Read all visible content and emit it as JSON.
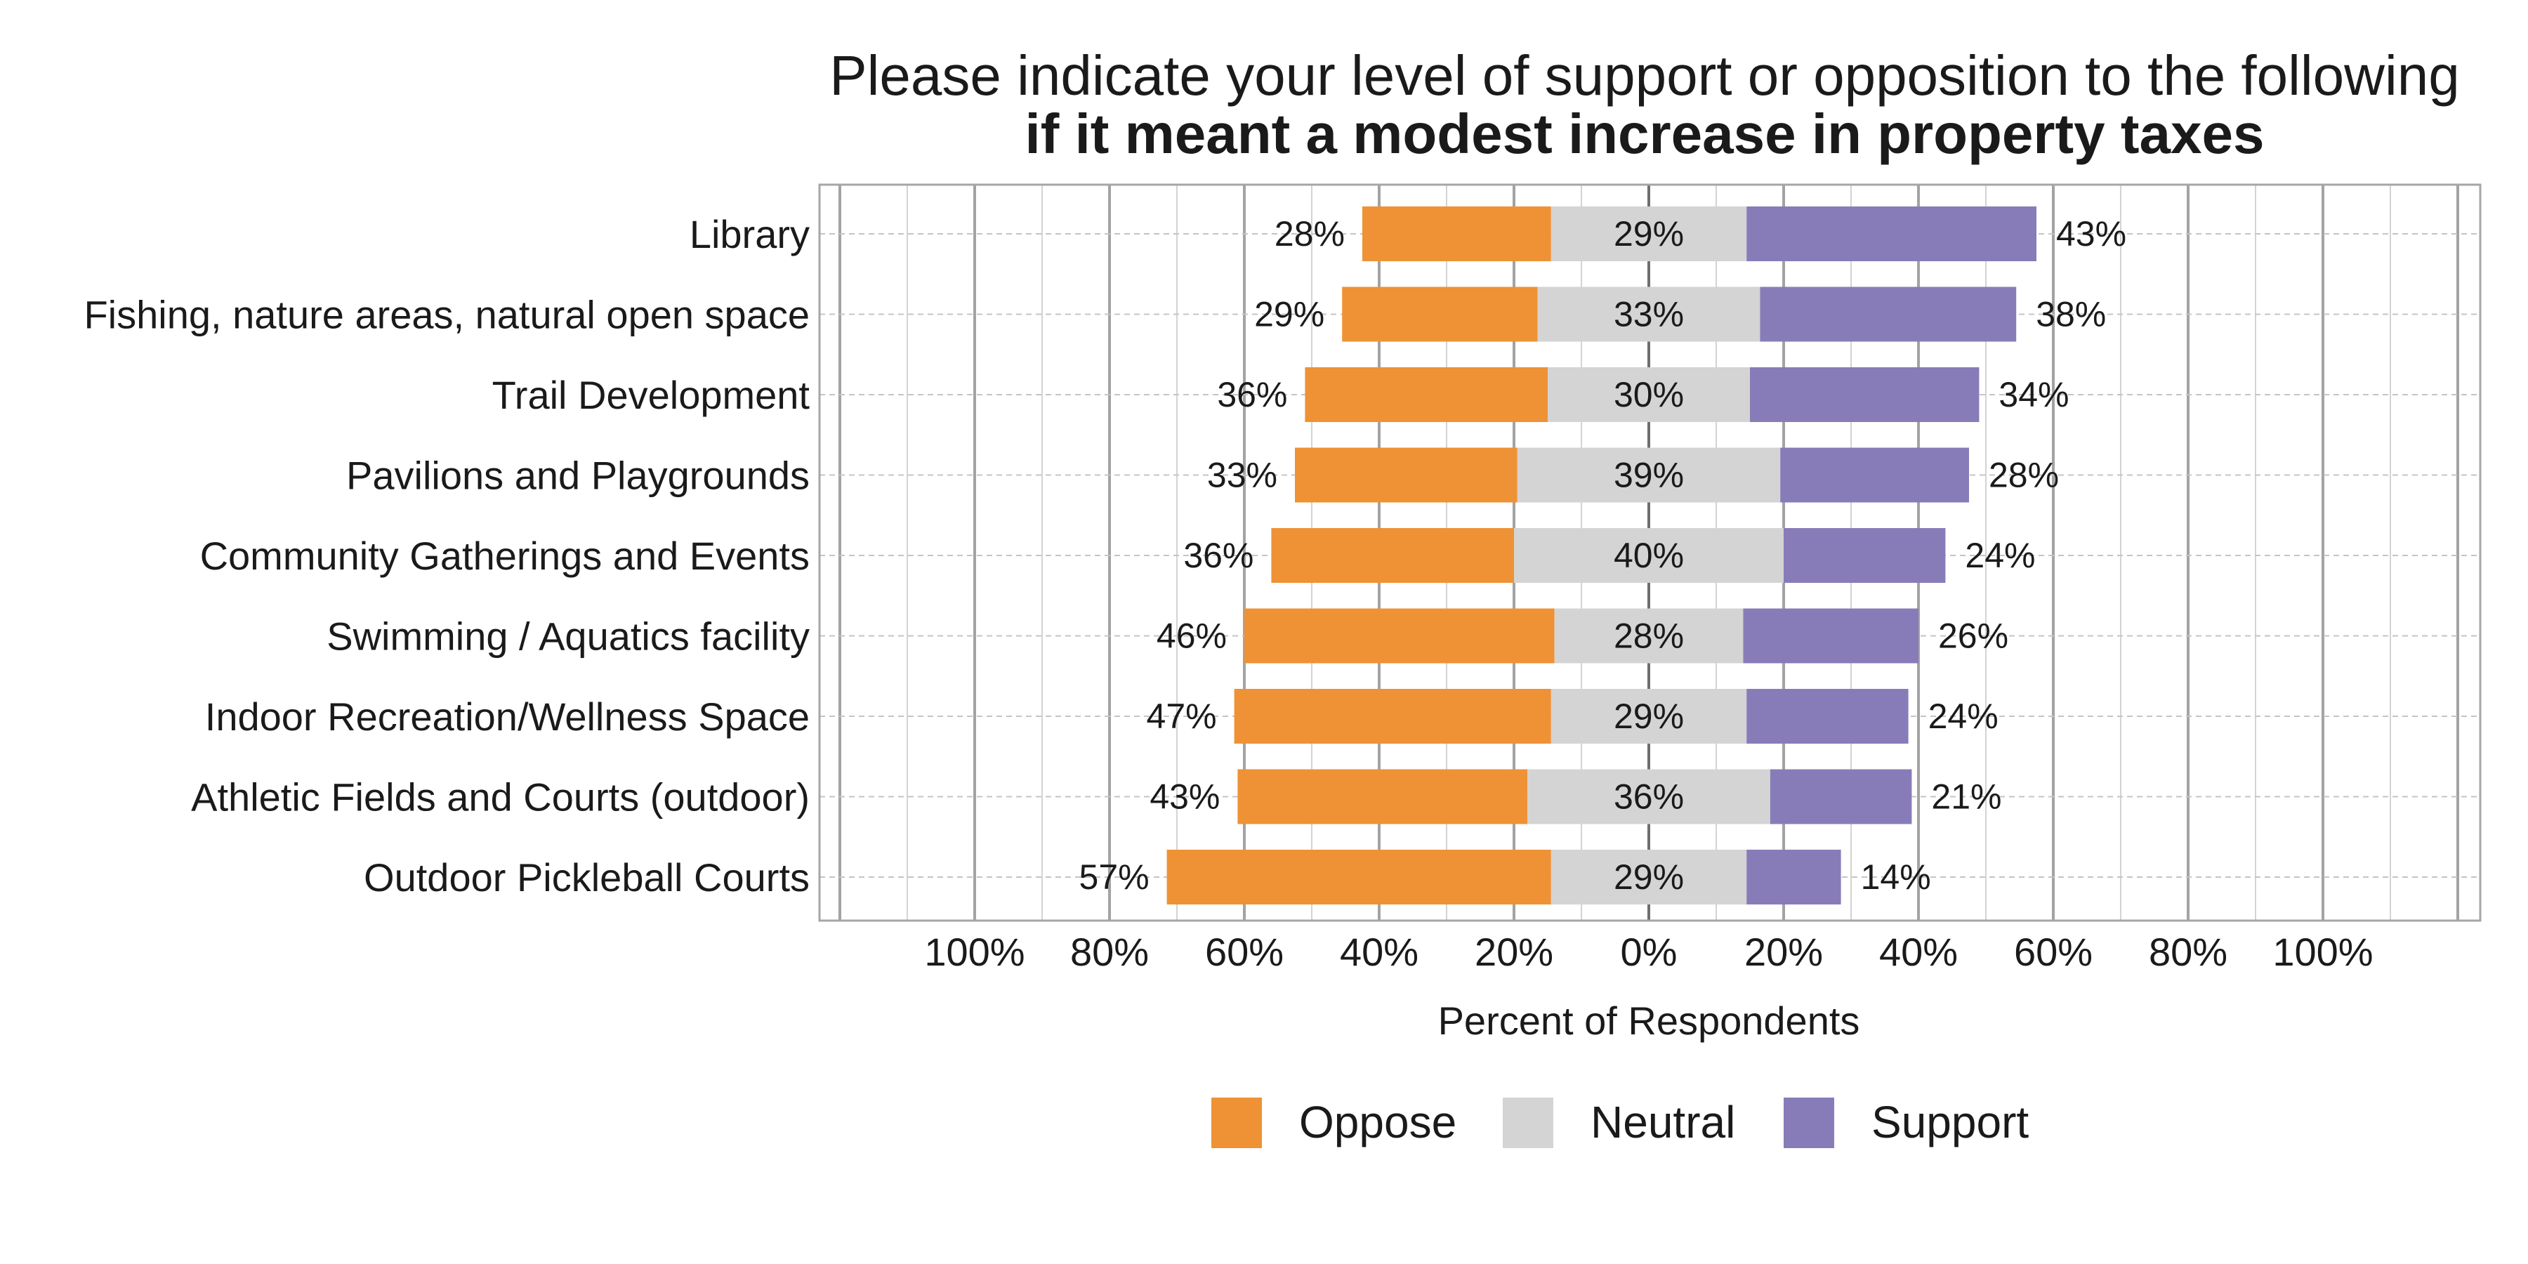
{
  "chart_data": {
    "type": "bar",
    "orientation": "horizontal",
    "stacking": "diverging",
    "title": "Please indicate your level of support or opposition to the following",
    "subtitle": "if it meant a modest increase in property taxes",
    "xlabel": "Percent of Respondents",
    "ylabel": "",
    "xlim": [
      -100,
      100
    ],
    "x_ticks": [
      -100,
      -80,
      -60,
      -40,
      -20,
      0,
      20,
      40,
      60,
      80,
      100
    ],
    "x_tick_labels": [
      "100%",
      "80%",
      "60%",
      "40%",
      "20%",
      "0%",
      "20%",
      "40%",
      "60%",
      "80%",
      "100%"
    ],
    "grid": true,
    "legend_position": "bottom",
    "categories": [
      "Library",
      "Fishing, nature areas, natural open space",
      "Trail Development",
      "Pavilions and Playgrounds",
      "Community Gatherings and Events",
      "Swimming / Aquatics facility",
      "Indoor Recreation/Wellness Space",
      "Athletic Fields and Courts (outdoor)",
      "Outdoor Pickleball Courts"
    ],
    "series": [
      {
        "name": "Oppose",
        "color": "#ee9235",
        "values": [
          28,
          29,
          36,
          33,
          36,
          46,
          47,
          43,
          57
        ],
        "labels": [
          "28%",
          "29%",
          "36%",
          "33%",
          "36%",
          "46%",
          "47%",
          "43%",
          "57%"
        ]
      },
      {
        "name": "Neutral",
        "color": "#d4d4d4",
        "values": [
          29,
          33,
          30,
          39,
          40,
          28,
          29,
          36,
          29
        ],
        "labels": [
          "29%",
          "33%",
          "30%",
          "39%",
          "40%",
          "28%",
          "29%",
          "36%",
          "29%"
        ]
      },
      {
        "name": "Support",
        "color": "#887cb8",
        "values": [
          43,
          38,
          34,
          28,
          24,
          26,
          24,
          21,
          14
        ],
        "labels": [
          "43%",
          "38%",
          "34%",
          "28%",
          "24%",
          "26%",
          "24%",
          "21%",
          "14%"
        ]
      }
    ]
  }
}
